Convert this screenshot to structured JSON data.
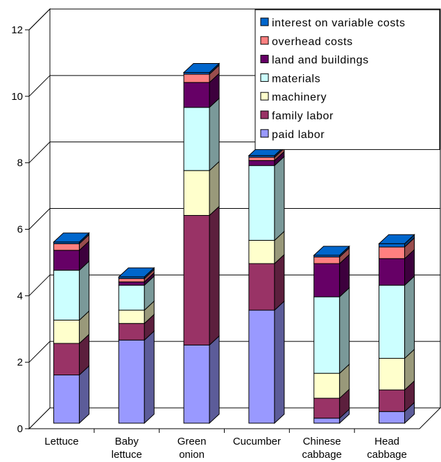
{
  "chart_data": {
    "type": "bar",
    "stacked": true,
    "three_d": true,
    "categories": [
      [
        "Lettuce"
      ],
      [
        "Baby",
        "lettuce"
      ],
      [
        "Green",
        "onion"
      ],
      [
        "Cucumber"
      ],
      [
        "Chinese",
        "cabbage"
      ],
      [
        "Head",
        "cabbage"
      ]
    ],
    "ylim": [
      0,
      12
    ],
    "yticks": [
      "0",
      "2",
      "4",
      "6",
      "8",
      "10",
      "12"
    ],
    "grid": true,
    "legend_position": "top-right",
    "series": [
      {
        "name": "paid labor",
        "color": "#9999ff",
        "values": [
          1.45,
          2.5,
          2.35,
          3.4,
          0.15,
          0.35
        ]
      },
      {
        "name": "family labor",
        "color": "#993366",
        "values": [
          0.95,
          0.5,
          3.9,
          1.4,
          0.6,
          0.65
        ]
      },
      {
        "name": "machinery",
        "color": "#ffffcc",
        "values": [
          0.7,
          0.4,
          1.35,
          0.7,
          0.75,
          0.95
        ]
      },
      {
        "name": "materials",
        "color": "#ccffff",
        "values": [
          1.5,
          0.75,
          1.9,
          2.25,
          2.3,
          2.2
        ]
      },
      {
        "name": "land and buildings",
        "color": "#660066",
        "values": [
          0.6,
          0.1,
          0.75,
          0.15,
          1.0,
          0.8
        ]
      },
      {
        "name": "overhead costs",
        "color": "#ff8080",
        "values": [
          0.2,
          0.1,
          0.25,
          0.1,
          0.2,
          0.35
        ]
      },
      {
        "name": "interest on variable costs",
        "color": "#0066cc",
        "values": [
          0.05,
          0.05,
          0.05,
          0.05,
          0.05,
          0.1
        ]
      }
    ]
  }
}
